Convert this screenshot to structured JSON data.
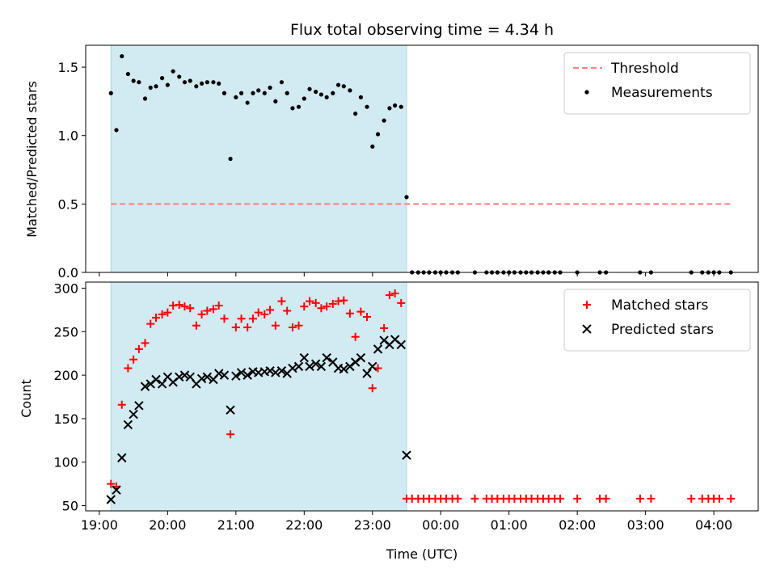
{
  "chart_data": [
    {
      "type": "scatter",
      "title": "Flux total observing time = 4.34 h",
      "ylabel": "Matched/Predicted stars",
      "xlabel": "",
      "x_unit": "hours since 19:00 UTC",
      "xlim": [
        18.8,
        28.65
      ],
      "ylim": [
        0,
        1.66
      ],
      "yticks": [
        0.0,
        0.5,
        1.0,
        1.5
      ],
      "ytick_labels": [
        "0.0",
        "0.5",
        "1.0",
        "1.5"
      ],
      "shaded_span": [
        19.17,
        23.5
      ],
      "shade_color": "#add8e6",
      "legend_position": "top-right",
      "threshold": {
        "name": "Threshold",
        "value": 0.5,
        "x_range": [
          19.17,
          28.25
        ],
        "color": "#ff7f7f"
      },
      "series": [
        {
          "name": "Measurements",
          "color": "#000000",
          "marker": "dot",
          "x": [
            19.17,
            19.25,
            19.33,
            19.42,
            19.5,
            19.58,
            19.67,
            19.75,
            19.83,
            19.92,
            20.0,
            20.08,
            20.17,
            20.25,
            20.33,
            20.42,
            20.5,
            20.58,
            20.67,
            20.75,
            20.83,
            20.92,
            21.0,
            21.08,
            21.17,
            21.25,
            21.33,
            21.42,
            21.5,
            21.58,
            21.67,
            21.75,
            21.83,
            21.92,
            22.0,
            22.08,
            22.17,
            22.25,
            22.33,
            22.42,
            22.5,
            22.58,
            22.67,
            22.75,
            22.83,
            22.92,
            23.0,
            23.08,
            23.17,
            23.25,
            23.33,
            23.42,
            23.5,
            23.58,
            23.67,
            23.75,
            23.83,
            23.92,
            24.0,
            24.08,
            24.17,
            24.25,
            24.5,
            24.67,
            24.75,
            24.83,
            24.92,
            25.0,
            25.08,
            25.17,
            25.25,
            25.33,
            25.42,
            25.5,
            25.58,
            25.67,
            25.75,
            26.0,
            26.33,
            26.42,
            26.92,
            27.08,
            27.67,
            27.83,
            27.92,
            28.0,
            28.08,
            28.25
          ],
          "y": [
            1.31,
            1.04,
            1.58,
            1.45,
            1.4,
            1.39,
            1.27,
            1.35,
            1.36,
            1.42,
            1.37,
            1.47,
            1.43,
            1.39,
            1.4,
            1.36,
            1.38,
            1.39,
            1.39,
            1.38,
            1.31,
            0.83,
            1.28,
            1.31,
            1.24,
            1.31,
            1.33,
            1.31,
            1.35,
            1.25,
            1.39,
            1.31,
            1.2,
            1.21,
            1.27,
            1.34,
            1.32,
            1.3,
            1.28,
            1.31,
            1.37,
            1.36,
            1.33,
            1.16,
            1.28,
            1.21,
            0.92,
            1.01,
            1.11,
            1.2,
            1.22,
            1.21,
            0.55,
            0,
            0,
            0,
            0,
            0,
            0,
            0,
            0,
            0,
            0,
            0,
            0,
            0,
            0,
            0,
            0,
            0,
            0,
            0,
            0,
            0,
            0,
            0,
            0,
            0,
            0,
            0,
            0,
            0,
            0,
            0,
            0,
            0,
            0,
            0
          ]
        }
      ]
    },
    {
      "type": "scatter",
      "title": "",
      "ylabel": "Count",
      "xlabel": "Time (UTC)",
      "x_unit": "hours since 19:00 UTC",
      "xlim": [
        18.8,
        28.65
      ],
      "ylim": [
        44,
        307
      ],
      "yticks": [
        50,
        100,
        150,
        200,
        250,
        300
      ],
      "ytick_labels": [
        "50",
        "100",
        "150",
        "200",
        "250",
        "300"
      ],
      "xticks": [
        19,
        20,
        21,
        22,
        23,
        24,
        25,
        26,
        27,
        28
      ],
      "xtick_labels": [
        "19:00",
        "20:00",
        "21:00",
        "22:00",
        "23:00",
        "00:00",
        "01:00",
        "02:00",
        "03:00",
        "04:00"
      ],
      "shaded_span": [
        19.17,
        23.5
      ],
      "shade_color": "#add8e6",
      "legend_position": "top-right",
      "series": [
        {
          "name": "Matched stars",
          "color": "#ff0000",
          "marker": "plus",
          "x": [
            19.17,
            19.25,
            19.33,
            19.42,
            19.5,
            19.58,
            19.67,
            19.75,
            19.83,
            19.92,
            20.0,
            20.08,
            20.17,
            20.25,
            20.33,
            20.42,
            20.5,
            20.58,
            20.67,
            20.75,
            20.83,
            20.92,
            21.0,
            21.08,
            21.17,
            21.25,
            21.33,
            21.42,
            21.5,
            21.58,
            21.67,
            21.75,
            21.83,
            21.92,
            22.0,
            22.08,
            22.17,
            22.25,
            22.33,
            22.42,
            22.5,
            22.58,
            22.67,
            22.75,
            22.83,
            22.92,
            23.0,
            23.08,
            23.17,
            23.25,
            23.33,
            23.42,
            23.5,
            23.58,
            23.67,
            23.75,
            23.83,
            23.92,
            24.0,
            24.08,
            24.17,
            24.25,
            24.5,
            24.67,
            24.75,
            24.83,
            24.92,
            25.0,
            25.08,
            25.17,
            25.25,
            25.33,
            25.42,
            25.5,
            25.58,
            25.67,
            25.75,
            26.0,
            26.33,
            26.42,
            26.92,
            27.08,
            27.67,
            27.83,
            27.92,
            28.0,
            28.08,
            28.25
          ],
          "y": [
            75,
            72,
            166,
            208,
            218,
            230,
            237,
            259,
            266,
            270,
            272,
            280,
            281,
            279,
            277,
            257,
            270,
            274,
            276,
            280,
            265,
            132,
            255,
            265,
            255,
            265,
            272,
            270,
            275,
            257,
            285,
            274,
            255,
            257,
            279,
            285,
            283,
            277,
            279,
            282,
            285,
            286,
            271,
            244,
            273,
            267,
            185,
            208,
            254,
            292,
            294,
            283,
            58,
            58,
            58,
            58,
            58,
            58,
            58,
            58,
            58,
            58,
            58,
            58,
            58,
            58,
            58,
            58,
            58,
            58,
            58,
            58,
            58,
            58,
            58,
            58,
            58,
            58,
            58,
            58,
            58,
            58,
            58,
            58,
            58,
            58,
            58,
            58
          ]
        },
        {
          "name": "Predicted stars",
          "color": "#000000",
          "marker": "x",
          "x": [
            19.17,
            19.25,
            19.33,
            19.42,
            19.5,
            19.58,
            19.67,
            19.75,
            19.83,
            19.92,
            20.0,
            20.08,
            20.17,
            20.25,
            20.33,
            20.42,
            20.5,
            20.58,
            20.67,
            20.75,
            20.83,
            20.92,
            21.0,
            21.08,
            21.17,
            21.25,
            21.33,
            21.42,
            21.5,
            21.58,
            21.67,
            21.75,
            21.83,
            21.92,
            22.0,
            22.08,
            22.17,
            22.25,
            22.33,
            22.42,
            22.5,
            22.58,
            22.67,
            22.75,
            22.83,
            22.92,
            23.0,
            23.08,
            23.17,
            23.25,
            23.33,
            23.42,
            23.5
          ],
          "y": [
            57,
            68,
            105,
            143,
            155,
            165,
            187,
            190,
            195,
            190,
            198,
            192,
            198,
            200,
            198,
            190,
            196,
            198,
            195,
            202,
            200,
            160,
            199,
            203,
            200,
            204,
            203,
            204,
            205,
            203,
            205,
            202,
            208,
            210,
            220,
            210,
            213,
            210,
            220,
            215,
            208,
            207,
            210,
            215,
            220,
            202,
            210,
            230,
            240,
            235,
            241,
            235,
            108
          ]
        }
      ]
    }
  ]
}
